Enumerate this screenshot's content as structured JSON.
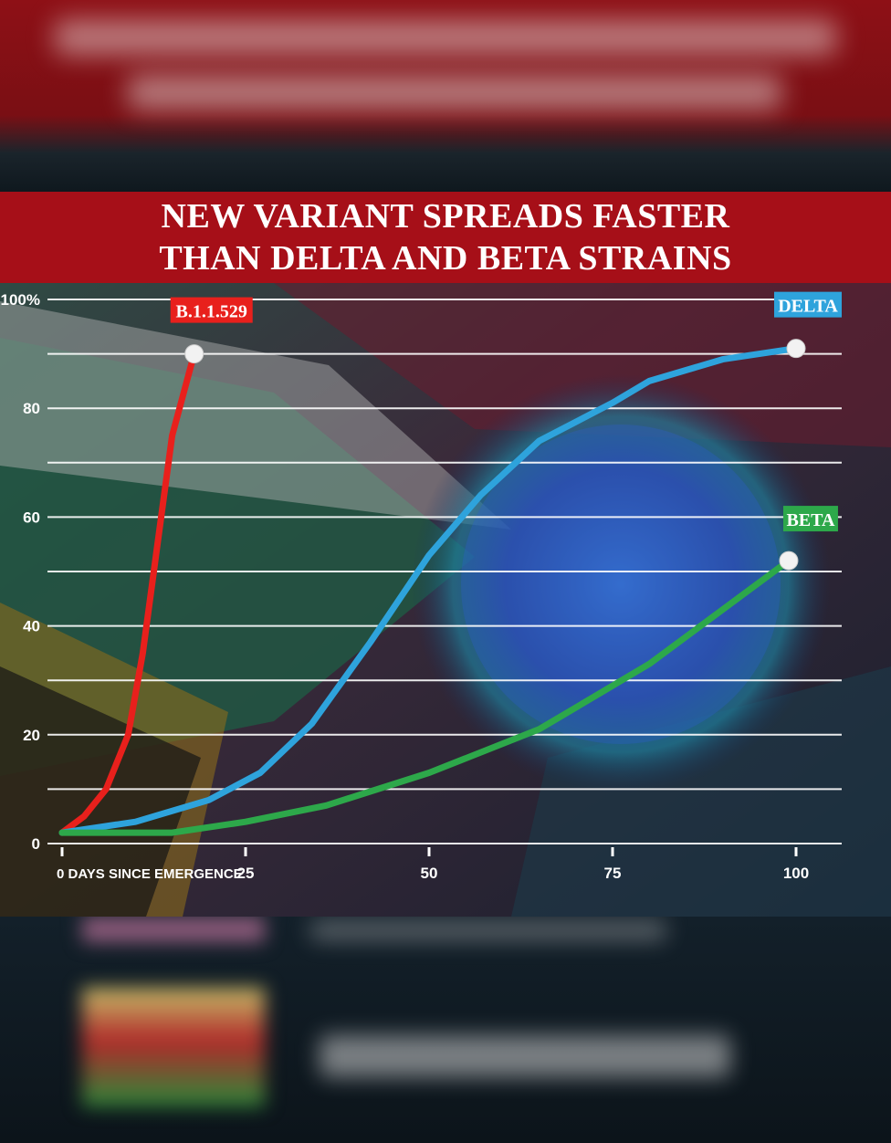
{
  "headline": {
    "line1": "NEW VARIANT SPREADS FASTER",
    "line2": "THAN DELTA AND BETA STRAINS"
  },
  "colors": {
    "banner": "#a60f18",
    "b11529": "#e8201c",
    "delta": "#2ea3dc",
    "beta": "#2da84a"
  },
  "chart_data": {
    "type": "line",
    "title": "NEW VARIANT SPREADS FASTER THAN DELTA AND BETA STRAINS",
    "xlabel": "DAYS SINCE EMERGENCE",
    "ylabel": "",
    "xlim": [
      0,
      100
    ],
    "ylim": [
      0,
      100
    ],
    "x_ticks": [
      0,
      25,
      50,
      75,
      100
    ],
    "x_tick_labels": [
      "0 DAYS SINCE EMERGENCE",
      "25",
      "50",
      "75",
      "100"
    ],
    "y_ticks": [
      0,
      20,
      40,
      60,
      80,
      100
    ],
    "y_tick_labels": [
      "0",
      "20",
      "40",
      "60",
      "80",
      "100%"
    ],
    "grid": true,
    "series": [
      {
        "name": "B.1.1.529",
        "color": "#e8201c",
        "points": [
          [
            0,
            2
          ],
          [
            3,
            5
          ],
          [
            6,
            10
          ],
          [
            9,
            20
          ],
          [
            11,
            35
          ],
          [
            13,
            55
          ],
          [
            15,
            75
          ],
          [
            18,
            90
          ]
        ]
      },
      {
        "name": "DELTA",
        "color": "#2ea3dc",
        "points": [
          [
            0,
            2
          ],
          [
            10,
            4
          ],
          [
            20,
            8
          ],
          [
            27,
            13
          ],
          [
            34,
            22
          ],
          [
            42,
            37
          ],
          [
            50,
            53
          ],
          [
            57,
            64
          ],
          [
            65,
            74
          ],
          [
            75,
            81
          ],
          [
            80,
            85
          ],
          [
            90,
            89
          ],
          [
            100,
            91
          ]
        ]
      },
      {
        "name": "BETA",
        "color": "#2da84a",
        "points": [
          [
            0,
            2
          ],
          [
            15,
            2
          ],
          [
            25,
            4
          ],
          [
            36,
            7
          ],
          [
            50,
            13
          ],
          [
            65,
            21
          ],
          [
            80,
            33
          ],
          [
            99,
            52
          ]
        ]
      }
    ]
  }
}
